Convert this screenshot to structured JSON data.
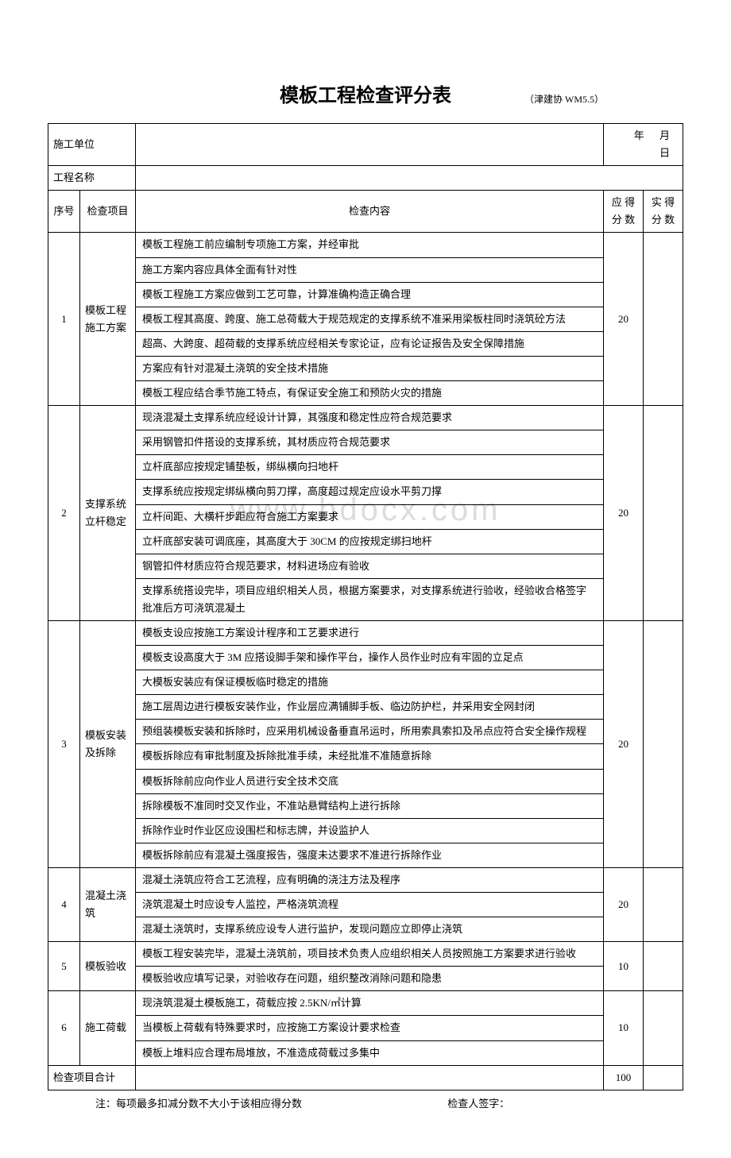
{
  "title": "模板工程检查评分表",
  "docCode": "（津建协 WM5.5）",
  "watermark": "www.bdocx.com",
  "header": {
    "unitLabel": "施工单位",
    "dateLabel": "年    月    日",
    "projectLabel": "工程名称",
    "seqHeader": "序号",
    "itemHeader": "检查项目",
    "contentHeader": "检查内容",
    "score1Header": "应  得 分  数",
    "score2Header": "实  得 分  数"
  },
  "sections": [
    {
      "seq": "1",
      "item": "模板工程施工方案",
      "score": "20",
      "actual": "",
      "rows": [
        "模板工程施工前应编制专项施工方案，并经审批",
        "施工方案内容应具体全面有针对性",
        "模板工程施工方案应做到工艺可靠，计算准确构造正确合理",
        "模板工程其高度、跨度、施工总荷载大于规范规定的支撑系统不准采用梁板柱同时浇筑砼方法",
        "超高、大跨度、超荷载的支撑系统应经相关专家论证，应有论证报告及安全保障措施",
        "方案应有针对混凝土浇筑的安全技术措施",
        "模板工程应结合季节施工特点，有保证安全施工和预防火灾的措施"
      ]
    },
    {
      "seq": "2",
      "item": "支撑系统立杆稳定",
      "score": "20",
      "actual": "",
      "rows": [
        "现浇混凝土支撑系统应经设计计算，其强度和稳定性应符合规范要求",
        "采用钢管扣件搭设的支撑系统，其材质应符合规范要求",
        "立杆底部应按规定铺垫板，绑纵横向扫地杆",
        "支撑系统应按规定绑纵横向剪刀撑，高度超过规定应设水平剪刀撑",
        "立杆间距、大横杆步距应符合施工方案要求",
        "立杆底部安装可调底座，其高度大于 30CM 的应按规定绑扫地杆",
        "钢管扣件材质应符合规范要求，材料进场应有验收",
        "支撑系统搭设完毕，项目应组织相关人员，根据方案要求，对支撑系统进行验收，经验收合格签字批准后方可浇筑混凝土"
      ]
    },
    {
      "seq": "3",
      "item": "模板安装及拆除",
      "score": "20",
      "actual": "",
      "rows": [
        "模板支设应按施工方案设计程序和工艺要求进行",
        "模板支设高度大于 3M 应搭设脚手架和操作平台，操作人员作业时应有牢固的立足点",
        "大模板安装应有保证模板临时稳定的措施",
        "施工层周边进行模板安装作业，作业层应满铺脚手板、临边防护栏，并采用安全网封闭",
        "预组装模板安装和拆除时，应采用机械设备垂直吊运时，所用索具索扣及吊点应符合安全操作规程",
        "模板拆除应有审批制度及拆除批准手续，未经批准不准随意拆除",
        "模板拆除前应向作业人员进行安全技术交底",
        "拆除模板不准同时交叉作业，不准站悬臂结构上进行拆除",
        "拆除作业时作业区应设围栏和标志牌，并设监护人",
        "模板拆除前应有混凝土强度报告，强度未达要求不准进行拆除作业"
      ]
    },
    {
      "seq": "4",
      "item": "混凝土浇筑",
      "score": "20",
      "actual": "",
      "rows": [
        "混凝土浇筑应符合工艺流程，应有明确的浇注方法及程序",
        "浇筑混凝土时应设专人监控，严格浇筑流程",
        "混凝土浇筑时，支撑系统应设专人进行监护，发现问题应立即停止浇筑"
      ]
    },
    {
      "seq": "5",
      "item": "模板验收",
      "score": "10",
      "actual": "",
      "rows": [
        "模板工程安装完毕，混凝土浇筑前，项目技术负责人应组织相关人员按照施工方案要求进行验收",
        "模板验收应填写记录，对验收存在问题，组织整改消除问题和隐患"
      ]
    },
    {
      "seq": "6",
      "item": "施工荷载",
      "score": "10",
      "actual": "",
      "rows": [
        "现浇筑混凝土模板施工，荷载应按 2.5KN/㎡计算",
        "当模板上荷载有特殊要求时，应按施工方案设计要求检查",
        "模板上堆料应合理布局堆放，不准造成荷载过多集中"
      ]
    }
  ],
  "total": {
    "label": "检查项目合计",
    "score": "100",
    "actual": ""
  },
  "footnote": {
    "left": "注：每项最多扣减分数不大小于该相应得分数",
    "right": "检查人签字："
  }
}
